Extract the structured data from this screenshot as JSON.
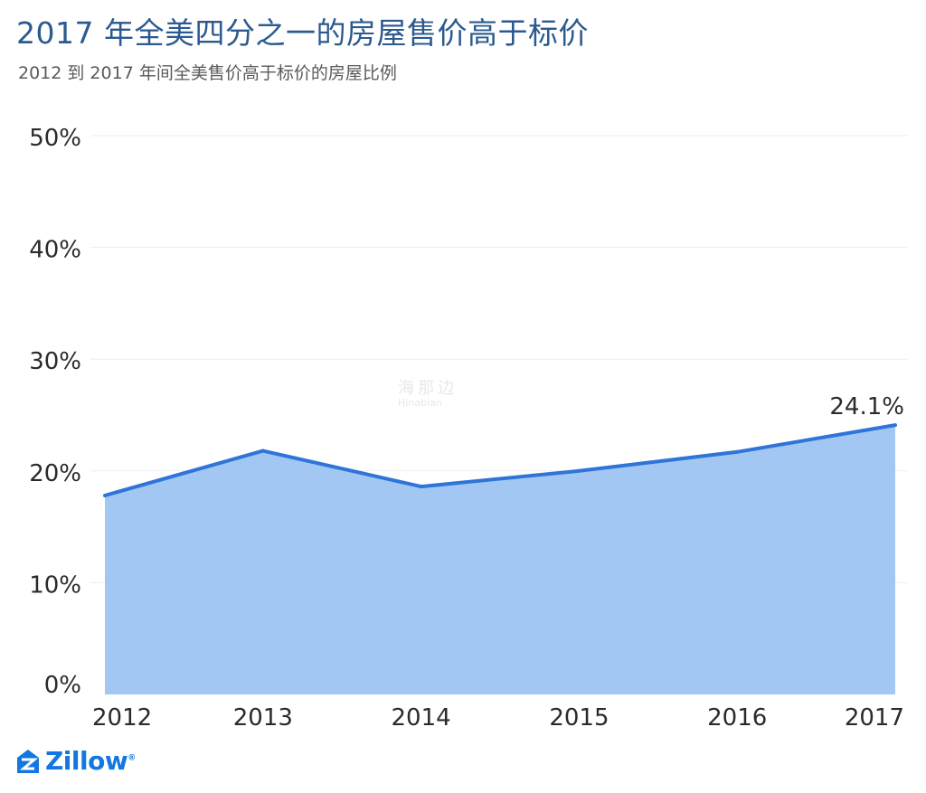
{
  "chart_data": {
    "type": "area",
    "title": "2017 年全美四分之一的房屋售价高于标价",
    "subtitle": "2012 到 2017 年间全美售价高于标价的房屋比例",
    "x": [
      "2012",
      "2013",
      "2014",
      "2015",
      "2016",
      "2017"
    ],
    "values": [
      17.8,
      21.8,
      18.6,
      20.0,
      21.7,
      24.1
    ],
    "y_tick_labels": [
      "0%",
      "10%",
      "20%",
      "30%",
      "40%",
      "50%"
    ],
    "ylim": [
      0,
      50
    ],
    "y_unit": "%",
    "grid": true,
    "annotation": {
      "x": "2017",
      "value": 24.1,
      "label": "24.1%"
    },
    "colors": {
      "line": "#2f74d8",
      "fill": "#a3c7f3",
      "grid": "#eaeef2",
      "title": "#2a5a8f"
    }
  },
  "watermark": {
    "cn": "海那边",
    "en": "Hinabian"
  },
  "logo": {
    "text": "Zillow",
    "mark": "®"
  }
}
